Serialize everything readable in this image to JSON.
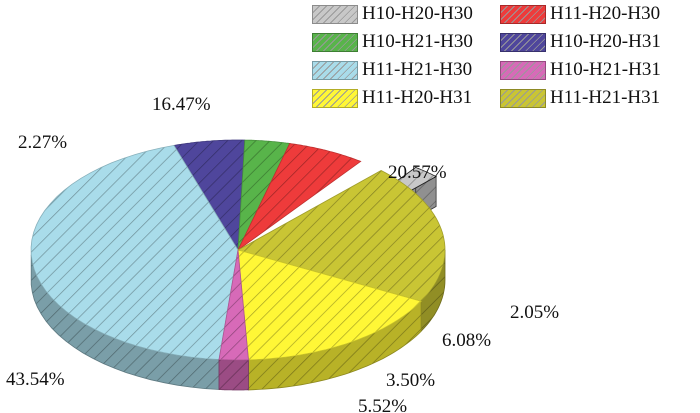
{
  "chart_data": {
    "type": "pie",
    "title": "",
    "style": "3d-exploded-hatched",
    "slices": [
      {
        "name": "H11-H21-H30",
        "value": 43.54,
        "label": "43.54%",
        "color": "#a9dcea"
      },
      {
        "name": "H10-H21-H31",
        "value": 2.27,
        "label": "2.27%",
        "color": "#d76ab8"
      },
      {
        "name": "H11-H20-H31",
        "value": 16.47,
        "label": "16.47%",
        "color": "#fff736"
      },
      {
        "name": "H11-H21-H31",
        "value": 20.57,
        "label": "20.57%",
        "color": "#c9c534"
      },
      {
        "name": "H10-H20-H30",
        "value": 2.05,
        "label": "2.05%",
        "color": "#c8c8c8",
        "exploded": true
      },
      {
        "name": "H11-H20-H30",
        "value": 6.08,
        "label": "6.08%",
        "color": "#ee3b3b"
      },
      {
        "name": "H10-H21-H30",
        "value": 3.5,
        "label": "3.50%",
        "color": "#58b44a"
      },
      {
        "name": "H10-H20-H31",
        "value": 5.52,
        "label": "5.52%",
        "color": "#4f469c"
      }
    ],
    "legend": {
      "placement": "top-right",
      "columns": 2,
      "items": [
        {
          "text": "H10-H20-H30",
          "color": "#c8c8c8"
        },
        {
          "text": "H11-H20-H30",
          "color": "#ee3b3b"
        },
        {
          "text": "H10-H21-H30",
          "color": "#58b44a"
        },
        {
          "text": "H10-H20-H31",
          "color": "#4f469c"
        },
        {
          "text": "H11-H21-H30",
          "color": "#a9dcea"
        },
        {
          "text": "H10-H21-H31",
          "color": "#d76ab8"
        },
        {
          "text": "H11-H20-H31",
          "color": "#fff736"
        },
        {
          "text": "H11-H21-H31",
          "color": "#c9c534"
        }
      ]
    }
  }
}
